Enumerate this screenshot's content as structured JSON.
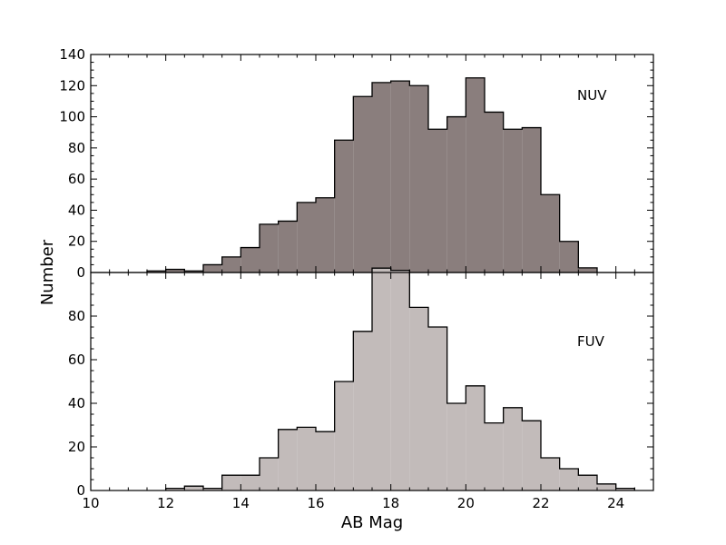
{
  "chart_data": {
    "type": "histogram",
    "xlabel": "AB Mag",
    "ylabel": "Number",
    "xlim": [
      10,
      25
    ],
    "x_ticks": [
      "10",
      "12",
      "14",
      "16",
      "18",
      "20",
      "22",
      "24"
    ],
    "bin_width": 0.5,
    "panels": [
      {
        "label": "NUV",
        "ylim": [
          0,
          140
        ],
        "y_ticks": [
          "0",
          "20",
          "40",
          "60",
          "80",
          "100",
          "120",
          "140"
        ],
        "fill": "#8a7e7d",
        "bin_edges": [
          11.5,
          12.0,
          12.5,
          13.0,
          13.5,
          14.0,
          14.5,
          15.0,
          15.5,
          16.0,
          16.5,
          17.0,
          17.5,
          18.0,
          18.5,
          19.0,
          19.5,
          20.0,
          20.5,
          21.0,
          21.5,
          22.0,
          22.5,
          23.0,
          23.5
        ],
        "counts": [
          1,
          2,
          1,
          5,
          10,
          16,
          31,
          33,
          45,
          48,
          85,
          113,
          122,
          123,
          120,
          92,
          100,
          125,
          103,
          92,
          93,
          50,
          20,
          3
        ]
      },
      {
        "label": "FUV",
        "ylim": [
          0,
          100
        ],
        "y_ticks": [
          "0",
          "20",
          "40",
          "60",
          "80"
        ],
        "fill": "#c2bbba",
        "bin_edges": [
          12.0,
          12.5,
          13.0,
          13.5,
          14.0,
          14.5,
          15.0,
          15.5,
          16.0,
          16.5,
          17.0,
          17.5,
          18.0,
          18.5,
          19.0,
          19.5,
          20.0,
          20.5,
          21.0,
          21.5,
          22.0,
          22.5,
          23.0,
          23.5,
          24.0,
          24.5
        ],
        "counts": [
          1,
          2,
          1,
          7,
          7,
          15,
          28,
          29,
          27,
          50,
          73,
          102,
          101,
          84,
          75,
          40,
          48,
          31,
          38,
          32,
          15,
          10,
          7,
          3,
          1
        ]
      }
    ]
  }
}
